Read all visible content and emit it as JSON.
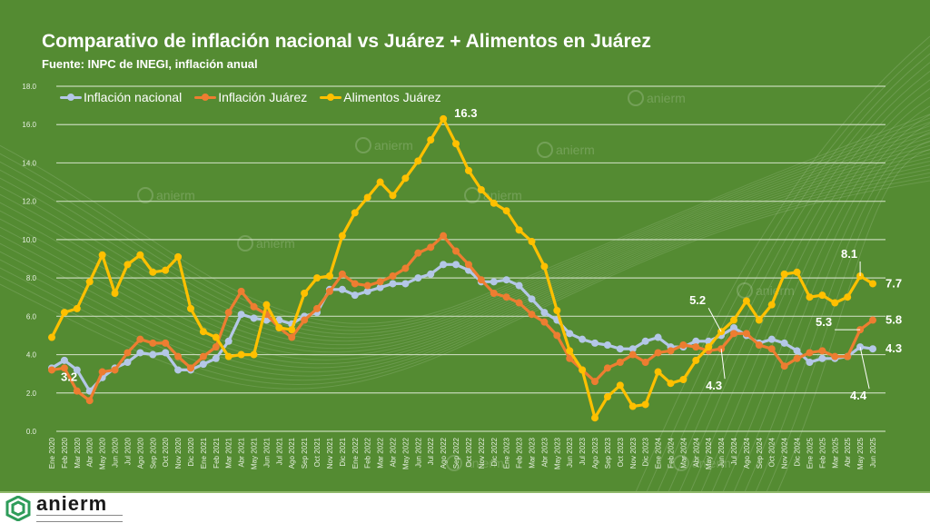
{
  "header": {
    "title": "Comparativo de inflación nacional vs Juárez + Alimentos en Juárez",
    "subtitle": "Fuente: INPC de INEGI, inflación anual"
  },
  "logo": {
    "name": "anierm",
    "tagline": "ASOCIACIÓN NACIONAL DE IMPORTADORES Y EXPORTADORES DE LA REPÚBLICA MEXICANA",
    "watermark": "anierm"
  },
  "colors": {
    "background": "#548b32",
    "nacional": "#b4c7e7",
    "juarez": "#ed7d31",
    "alimentos": "#ffc000",
    "grid": "#d9e6cf"
  },
  "chart_data": {
    "type": "line",
    "title": "Comparativo de inflación nacional vs Juárez + Alimentos en Juárez",
    "subtitle": "Fuente: INPC de INEGI, inflación anual",
    "xlabel": "",
    "ylabel": "",
    "ylim": [
      0,
      18
    ],
    "yticks": [
      "0.0",
      "2.0",
      "4.0",
      "6.0",
      "8.0",
      "10.0",
      "12.0",
      "14.0",
      "16.0",
      "18.0"
    ],
    "grid": true,
    "legend_position": "top-left",
    "categories": [
      "Ene 2020",
      "Feb 2020",
      "Mar 2020",
      "Abr 2020",
      "May 2020",
      "Jun 2020",
      "Jul 2020",
      "Ago 2020",
      "Sep 2020",
      "Oct 2020",
      "Nov 2020",
      "Dic 2020",
      "Ene 2021",
      "Feb 2021",
      "Mar 2021",
      "Abr 2021",
      "May 2021",
      "Jun 2021",
      "Jul 2021",
      "Ago 2021",
      "Sep 2021",
      "Oct 2021",
      "Nov 2021",
      "Dic 2021",
      "Ene 2022",
      "Feb 2022",
      "Mar 2022",
      "Abr 2022",
      "May 2022",
      "Jun 2022",
      "Jul 2022",
      "Ago 2022",
      "Sep 2022",
      "Oct 2022",
      "Nov 2022",
      "Dic 2022",
      "Ene 2023",
      "Feb 2023",
      "Mar 2023",
      "Abr 2023",
      "May 2023",
      "Jun 2023",
      "Jul 2023",
      "Ago 2023",
      "Sep 2023",
      "Oct 2023",
      "Nov 2023",
      "Dic 2023",
      "Ene 2024",
      "Feb 2024",
      "Mar 2024",
      "Abr 2024",
      "May 2024",
      "Jun 2024",
      "Jul 2024",
      "Ago 2024",
      "Sep 2024",
      "Oct 2024",
      "Nov 2024",
      "Dic 2024",
      "Ene 2025",
      "Feb 2025",
      "Mar 2025",
      "Abr 2025",
      "May 2025",
      "Jun 2025"
    ],
    "series": [
      {
        "name": "Inflación nacional",
        "color": "#b4c7e7",
        "values": [
          3.3,
          3.7,
          3.2,
          2.1,
          2.8,
          3.3,
          3.6,
          4.1,
          4.0,
          4.1,
          3.2,
          3.2,
          3.5,
          3.8,
          4.7,
          6.1,
          5.9,
          5.8,
          5.8,
          5.6,
          6.0,
          6.2,
          7.4,
          7.4,
          7.1,
          7.3,
          7.5,
          7.7,
          7.7,
          8.0,
          8.2,
          8.7,
          8.7,
          8.4,
          7.8,
          7.8,
          7.9,
          7.6,
          6.9,
          6.2,
          5.8,
          5.1,
          4.8,
          4.6,
          4.5,
          4.3,
          4.3,
          4.7,
          4.9,
          4.4,
          4.4,
          4.7,
          4.7,
          5.0,
          5.4,
          5.0,
          4.6,
          4.8,
          4.6,
          4.2,
          3.6,
          3.8,
          3.8,
          3.9,
          4.4,
          4.3
        ],
        "labels": [
          {
            "index": 64,
            "text": "4.4"
          },
          {
            "index": 65,
            "text": "4.3"
          }
        ]
      },
      {
        "name": "Inflación Juárez",
        "color": "#ed7d31",
        "values": [
          3.2,
          3.3,
          2.1,
          1.6,
          3.1,
          3.2,
          4.1,
          4.8,
          4.6,
          4.6,
          3.9,
          3.3,
          3.9,
          4.4,
          6.2,
          7.3,
          6.5,
          6.1,
          5.4,
          4.9,
          5.8,
          6.4,
          7.3,
          8.2,
          7.7,
          7.6,
          7.8,
          8.1,
          8.5,
          9.3,
          9.6,
          10.2,
          9.4,
          8.7,
          7.9,
          7.2,
          7.0,
          6.7,
          6.1,
          5.7,
          5.0,
          3.8,
          3.2,
          2.6,
          3.3,
          3.6,
          4.0,
          3.6,
          4.1,
          4.2,
          4.5,
          4.4,
          4.2,
          4.3,
          5.1,
          5.1,
          4.5,
          4.3,
          3.4,
          3.8,
          4.1,
          4.2,
          3.9,
          3.9,
          5.3,
          5.8
        ],
        "labels": [
          {
            "index": 0,
            "text": "3.2"
          },
          {
            "index": 53,
            "text": "4.3"
          },
          {
            "index": 64,
            "text": "5.3"
          },
          {
            "index": 65,
            "text": "5.8"
          }
        ]
      },
      {
        "name": "Alimentos Juárez",
        "color": "#ffc000",
        "values": [
          4.9,
          6.2,
          6.4,
          7.8,
          9.2,
          7.2,
          8.7,
          9.2,
          8.3,
          8.4,
          9.1,
          6.4,
          5.2,
          4.9,
          3.9,
          4.0,
          4.0,
          6.6,
          5.4,
          5.3,
          7.2,
          8.0,
          8.1,
          10.2,
          11.4,
          12.2,
          13.0,
          12.3,
          13.2,
          14.1,
          15.2,
          16.3,
          15.0,
          13.6,
          12.6,
          11.9,
          11.5,
          10.5,
          9.9,
          8.6,
          6.3,
          4.2,
          3.2,
          0.7,
          1.8,
          2.4,
          1.3,
          1.4,
          3.1,
          2.5,
          2.7,
          3.7,
          4.4,
          5.2,
          5.8,
          6.8,
          5.8,
          6.6,
          8.2,
          8.3,
          7.0,
          7.1,
          6.7,
          7.0,
          8.1,
          7.7
        ],
        "labels": [
          {
            "index": 31,
            "text": "16.3"
          },
          {
            "index": 53,
            "text": "5.2"
          },
          {
            "index": 64,
            "text": "8.1"
          },
          {
            "index": 65,
            "text": "7.7"
          }
        ]
      }
    ]
  }
}
